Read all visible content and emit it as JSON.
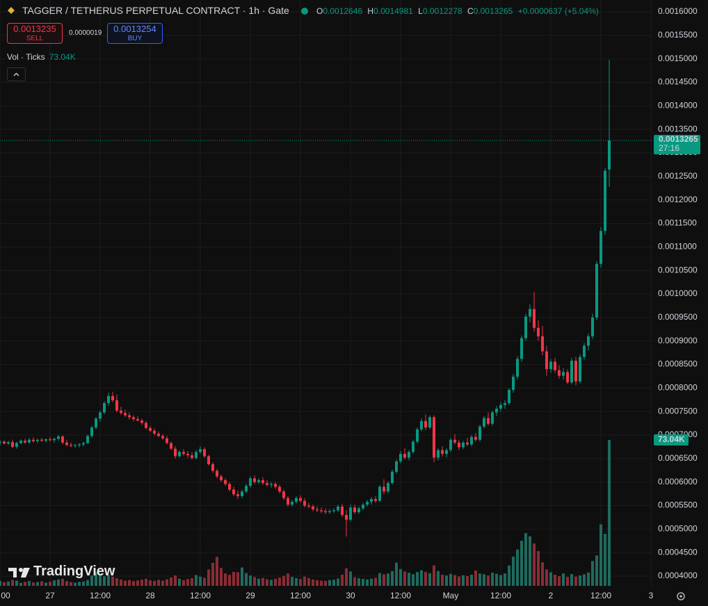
{
  "header": {
    "symbol": "TAGGER / TETHERUS PERPETUAL CONTRACT · 1h · Gate",
    "ohlc_letters": [
      "O",
      "H",
      "L",
      "C"
    ],
    "change": "+0.0000637 (+5.04%)"
  },
  "trade": {
    "sell_price": "0.0013235",
    "sell_label": "SELL",
    "spread": "0.0000019",
    "buy_price": "0.0013254",
    "buy_label": "BUY"
  },
  "volume_legend": "Vol · Ticks",
  "logo": "TradingView",
  "countdown": "27:16",
  "chart_data": {
    "type": "candlestick",
    "up_color": "#089981",
    "down_color": "#f23645",
    "vol_up_color": "#1e6b5f",
    "vol_down_color": "#8b2c35",
    "grid": true,
    "ylim": [
      0.0004,
      0.0016
    ],
    "yticks": [
      {
        "value": 0.0004,
        "label": "0.0004000"
      },
      {
        "value": 0.00045,
        "label": "0.0004500"
      },
      {
        "value": 0.0005,
        "label": "0.0005000"
      },
      {
        "value": 0.00055,
        "label": "0.0005500"
      },
      {
        "value": 0.0006,
        "label": "0.0006000"
      },
      {
        "value": 0.00065,
        "label": "0.0006500"
      },
      {
        "value": 0.0007,
        "label": "0.0007000"
      },
      {
        "value": 0.00075,
        "label": "0.0007500"
      },
      {
        "value": 0.0008,
        "label": "0.0008000"
      },
      {
        "value": 0.00085,
        "label": "0.0008500"
      },
      {
        "value": 0.0009,
        "label": "0.0009000"
      },
      {
        "value": 0.00095,
        "label": "0.0009500"
      },
      {
        "value": 0.001,
        "label": "0.0010000"
      },
      {
        "value": 0.00105,
        "label": "0.0010500"
      },
      {
        "value": 0.0011,
        "label": "0.0011000"
      },
      {
        "value": 0.00115,
        "label": "0.0011500"
      },
      {
        "value": 0.0012,
        "label": "0.0012000"
      },
      {
        "value": 0.00125,
        "label": "0.0012500"
      },
      {
        "value": 0.0013,
        "label": "0.0013000"
      },
      {
        "value": 0.00135,
        "label": "0.0013500"
      },
      {
        "value": 0.0014,
        "label": "0.0014000"
      },
      {
        "value": 0.00145,
        "label": "0.0014500"
      },
      {
        "value": 0.0015,
        "label": "0.0015000"
      },
      {
        "value": 0.00155,
        "label": "0.0015500"
      },
      {
        "value": 0.0016,
        "label": "0.0016000"
      }
    ],
    "xticks": [
      {
        "value": 0,
        "label": "00"
      },
      {
        "value": 12,
        "label": "27"
      },
      {
        "value": 24,
        "label": "12:00"
      },
      {
        "value": 36,
        "label": "28"
      },
      {
        "value": 48,
        "label": "12:00"
      },
      {
        "value": 60,
        "label": "29"
      },
      {
        "value": 72,
        "label": "12:00"
      },
      {
        "value": 84,
        "label": "30"
      },
      {
        "value": 96,
        "label": "12:00"
      },
      {
        "value": 108,
        "label": "May"
      },
      {
        "value": 120,
        "label": "12:00"
      },
      {
        "value": 132,
        "label": "2"
      },
      {
        "value": 144,
        "label": "12:00"
      },
      {
        "value": 156,
        "label": "3"
      }
    ],
    "last_volume_label": "73.04K",
    "candles": [
      [
        0.000684,
        0.00069,
        0.000678,
        0.000686
      ],
      [
        0.000686,
        0.000689,
        0.00068,
        0.000682
      ],
      [
        0.000682,
        0.000688,
        0.000679,
        0.000685
      ],
      [
        0.000685,
        0.00069,
        0.000672,
        0.000675
      ],
      [
        0.000675,
        0.000686,
        0.000671,
        0.000683
      ],
      [
        0.000683,
        0.000691,
        0.00068,
        0.000688
      ],
      [
        0.000688,
        0.000692,
        0.000681,
        0.000684
      ],
      [
        0.000684,
        0.000694,
        0.000682,
        0.00069
      ],
      [
        0.00069,
        0.000695,
        0.000684,
        0.000687
      ],
      [
        0.000687,
        0.000692,
        0.000683,
        0.00069
      ],
      [
        0.00069,
        0.000694,
        0.000685,
        0.000688
      ],
      [
        0.000688,
        0.000693,
        0.000684,
        0.000691
      ],
      [
        0.000691,
        0.000696,
        0.000686,
        0.000689
      ],
      [
        0.000689,
        0.000694,
        0.000684,
        0.000692
      ],
      [
        0.000692,
        0.000701,
        0.000688,
        0.000697
      ],
      [
        0.000697,
        0.0007,
        0.00068,
        0.000684
      ],
      [
        0.000684,
        0.00069,
        0.000676,
        0.000679
      ],
      [
        0.000679,
        0.000684,
        0.000674,
        0.000677
      ],
      [
        0.000677,
        0.000682,
        0.000673,
        0.000678
      ],
      [
        0.000678,
        0.000683,
        0.000674,
        0.00068
      ],
      [
        0.00068,
        0.000686,
        0.000676,
        0.000683
      ],
      [
        0.000683,
        0.000701,
        0.000681,
        0.000698
      ],
      [
        0.000698,
        0.00072,
        0.000694,
        0.000716
      ],
      [
        0.000716,
        0.000738,
        0.000712,
        0.000735
      ],
      [
        0.000735,
        0.000752,
        0.000728,
        0.000748
      ],
      [
        0.000748,
        0.000772,
        0.000744,
        0.000768
      ],
      [
        0.000768,
        0.00079,
        0.000762,
        0.000783
      ],
      [
        0.000783,
        0.000792,
        0.00077,
        0.000774
      ],
      [
        0.000774,
        0.000786,
        0.000748,
        0.000752
      ],
      [
        0.000752,
        0.00076,
        0.000743,
        0.000747
      ],
      [
        0.000747,
        0.000754,
        0.000738,
        0.000742
      ],
      [
        0.000742,
        0.000748,
        0.000733,
        0.000738
      ],
      [
        0.000738,
        0.000742,
        0.000729,
        0.000734
      ],
      [
        0.000734,
        0.00074,
        0.000728,
        0.000731
      ],
      [
        0.000731,
        0.000735,
        0.000722,
        0.000726
      ],
      [
        0.000726,
        0.00073,
        0.000712,
        0.000715
      ],
      [
        0.000715,
        0.00072,
        0.000706,
        0.000709
      ],
      [
        0.000709,
        0.000714,
        0.0007,
        0.000703
      ],
      [
        0.000703,
        0.000708,
        0.000695,
        0.000698
      ],
      [
        0.000698,
        0.000702,
        0.00069,
        0.000693
      ],
      [
        0.000693,
        0.000698,
        0.00068,
        0.000683
      ],
      [
        0.000683,
        0.000686,
        0.000668,
        0.000671
      ],
      [
        0.000671,
        0.000676,
        0.00065,
        0.000655
      ],
      [
        0.000655,
        0.000668,
        0.000652,
        0.000664
      ],
      [
        0.000664,
        0.00067,
        0.000656,
        0.00066
      ],
      [
        0.00066,
        0.000666,
        0.000652,
        0.000657
      ],
      [
        0.000657,
        0.000664,
        0.000648,
        0.000651
      ],
      [
        0.000651,
        0.000668,
        0.000648,
        0.000664
      ],
      [
        0.000664,
        0.000676,
        0.00066,
        0.00067
      ],
      [
        0.00067,
        0.000674,
        0.000652,
        0.000655
      ],
      [
        0.000655,
        0.000658,
        0.000635,
        0.000638
      ],
      [
        0.000638,
        0.000642,
        0.00062,
        0.000624
      ],
      [
        0.000624,
        0.000628,
        0.000608,
        0.000612
      ],
      [
        0.000612,
        0.000616,
        0.0006,
        0.000604
      ],
      [
        0.000604,
        0.000608,
        0.000592,
        0.000596
      ],
      [
        0.000596,
        0.0006,
        0.00058,
        0.000584
      ],
      [
        0.000584,
        0.00059,
        0.00057,
        0.000574
      ],
      [
        0.000574,
        0.000582,
        0.000564,
        0.00057
      ],
      [
        0.00057,
        0.000584,
        0.000566,
        0.00058
      ],
      [
        0.00058,
        0.000596,
        0.000576,
        0.000592
      ],
      [
        0.000592,
        0.000612,
        0.000588,
        0.000608
      ],
      [
        0.000608,
        0.000614,
        0.000596,
        0.0006
      ],
      [
        0.0006,
        0.000608,
        0.000596,
        0.000604
      ],
      [
        0.000604,
        0.00061,
        0.000594,
        0.000598
      ],
      [
        0.000598,
        0.000604,
        0.00059,
        0.000594
      ],
      [
        0.000594,
        0.0006,
        0.000588,
        0.000596
      ],
      [
        0.000596,
        0.0006,
        0.000586,
        0.00059
      ],
      [
        0.00059,
        0.000594,
        0.000576,
        0.00058
      ],
      [
        0.00058,
        0.000584,
        0.000562,
        0.000566
      ],
      [
        0.000566,
        0.00057,
        0.000548,
        0.000552
      ],
      [
        0.000552,
        0.000562,
        0.000548,
        0.000558
      ],
      [
        0.000558,
        0.00057,
        0.000554,
        0.000566
      ],
      [
        0.000566,
        0.000572,
        0.000556,
        0.00056
      ],
      [
        0.00056,
        0.000566,
        0.000546,
        0.00055
      ],
      [
        0.00055,
        0.000556,
        0.000544,
        0.000548
      ],
      [
        0.000548,
        0.000552,
        0.000538,
        0.000542
      ],
      [
        0.000542,
        0.000548,
        0.000536,
        0.00054
      ],
      [
        0.00054,
        0.000546,
        0.000534,
        0.000538
      ],
      [
        0.000538,
        0.000544,
        0.000532,
        0.000536
      ],
      [
        0.000536,
        0.000542,
        0.000532,
        0.000538
      ],
      [
        0.000538,
        0.000544,
        0.000534,
        0.00054
      ],
      [
        0.00054,
        0.000552,
        0.000536,
        0.000548
      ],
      [
        0.000548,
        0.000554,
        0.000526,
        0.00053
      ],
      [
        0.00053,
        0.00054,
        0.000484,
        0.00052
      ],
      [
        0.00052,
        0.000552,
        0.000516,
        0.000546
      ],
      [
        0.000546,
        0.000552,
        0.000532,
        0.000536
      ],
      [
        0.000536,
        0.000548,
        0.000532,
        0.000544
      ],
      [
        0.000544,
        0.000556,
        0.00054,
        0.000552
      ],
      [
        0.000552,
        0.000562,
        0.000548,
        0.000558
      ],
      [
        0.000558,
        0.000568,
        0.000552,
        0.000564
      ],
      [
        0.000564,
        0.00057,
        0.000556,
        0.00056
      ],
      [
        0.00056,
        0.000594,
        0.000558,
        0.00059
      ],
      [
        0.00059,
        0.000606,
        0.000574,
        0.00058
      ],
      [
        0.00058,
        0.000602,
        0.000576,
        0.000598
      ],
      [
        0.000598,
        0.000626,
        0.000594,
        0.000622
      ],
      [
        0.000622,
        0.000648,
        0.000618,
        0.000644
      ],
      [
        0.000644,
        0.000666,
        0.00064,
        0.00066
      ],
      [
        0.00066,
        0.000672,
        0.000648,
        0.000652
      ],
      [
        0.000652,
        0.000668,
        0.000646,
        0.000664
      ],
      [
        0.000664,
        0.00069,
        0.00066,
        0.000686
      ],
      [
        0.000686,
        0.000716,
        0.000682,
        0.000712
      ],
      [
        0.000712,
        0.000736,
        0.000708,
        0.00073
      ],
      [
        0.00073,
        0.000744,
        0.00071,
        0.000716
      ],
      [
        0.000716,
        0.000742,
        0.000712,
        0.000738
      ],
      [
        0.000738,
        0.000742,
        0.000642,
        0.000652
      ],
      [
        0.000652,
        0.000672,
        0.000646,
        0.000668
      ],
      [
        0.000668,
        0.000676,
        0.000654,
        0.00066
      ],
      [
        0.00066,
        0.000672,
        0.000652,
        0.000668
      ],
      [
        0.000668,
        0.000694,
        0.000664,
        0.00069
      ],
      [
        0.00069,
        0.000702,
        0.00068,
        0.000684
      ],
      [
        0.000684,
        0.00069,
        0.000668,
        0.000674
      ],
      [
        0.000674,
        0.000688,
        0.00067,
        0.000684
      ],
      [
        0.000684,
        0.000694,
        0.000676,
        0.00068
      ],
      [
        0.00068,
        0.0007,
        0.000676,
        0.000696
      ],
      [
        0.000696,
        0.000704,
        0.000686,
        0.00069
      ],
      [
        0.00069,
        0.000722,
        0.000686,
        0.000718
      ],
      [
        0.000718,
        0.00074,
        0.000714,
        0.000736
      ],
      [
        0.000736,
        0.000748,
        0.00072,
        0.000724
      ],
      [
        0.000724,
        0.000752,
        0.00072,
        0.000748
      ],
      [
        0.000748,
        0.000762,
        0.00074,
        0.000756
      ],
      [
        0.000756,
        0.00077,
        0.00075,
        0.000764
      ],
      [
        0.000764,
        0.000774,
        0.000756,
        0.000768
      ],
      [
        0.000768,
        0.0008,
        0.000764,
        0.000796
      ],
      [
        0.000796,
        0.00083,
        0.00079,
        0.000824
      ],
      [
        0.000824,
        0.000868,
        0.000818,
        0.000862
      ],
      [
        0.000862,
        0.000912,
        0.000856,
        0.000906
      ],
      [
        0.000906,
        0.000958,
        0.0009,
        0.000952
      ],
      [
        0.000952,
        0.000978,
        0.00094,
        0.000968
      ],
      [
        0.000968,
        0.001004,
        0.00092,
        0.000928
      ],
      [
        0.000928,
        0.000944,
        0.0009,
        0.00091
      ],
      [
        0.00091,
        0.000932,
        0.00087,
        0.000878
      ],
      [
        0.000878,
        0.00089,
        0.000826,
        0.00084
      ],
      [
        0.00084,
        0.000862,
        0.000832,
        0.000856
      ],
      [
        0.000856,
        0.000864,
        0.000832,
        0.000838
      ],
      [
        0.000838,
        0.000848,
        0.00082,
        0.000826
      ],
      [
        0.000826,
        0.000842,
        0.000818,
        0.000834
      ],
      [
        0.000834,
        0.00084,
        0.000808,
        0.000812
      ],
      [
        0.000812,
        0.000864,
        0.000808,
        0.000858
      ],
      [
        0.000858,
        0.000866,
        0.000806,
        0.000814
      ],
      [
        0.000814,
        0.000872,
        0.00081,
        0.000866
      ],
      [
        0.000866,
        0.000896,
        0.00086,
        0.00089
      ],
      [
        0.00089,
        0.000916,
        0.00088,
        0.00091
      ],
      [
        0.00091,
        0.000958,
        0.000904,
        0.00095
      ],
      [
        0.00095,
        0.00107,
        0.000944,
        0.001064
      ],
      [
        0.001064,
        0.001142,
        0.001056,
        0.001134
      ],
      [
        0.001134,
        0.001268,
        0.001126,
        0.001262
      ],
      [
        0.0012646,
        0.0014981,
        0.0012278,
        0.0013265
      ]
    ],
    "volumes": [
      2500,
      1800,
      2200,
      3000,
      2600,
      1500,
      2000,
      2400,
      1700,
      1900,
      2300,
      1600,
      2100,
      2800,
      3200,
      3500,
      2400,
      1900,
      1600,
      2000,
      2200,
      2900,
      5200,
      6800,
      6000,
      4800,
      5500,
      4600,
      3800,
      3200,
      2600,
      2900,
      2400,
      2700,
      3100,
      3600,
      2800,
      2500,
      3000,
      2600,
      3300,
      4200,
      5200,
      3600,
      2900,
      3400,
      3800,
      5400,
      4600,
      4000,
      8200,
      11500,
      14500,
      9000,
      6200,
      5500,
      7000,
      6800,
      9200,
      6400,
      5200,
      4400,
      3600,
      3900,
      3300,
      3000,
      3600,
      4100,
      5000,
      6200,
      4500,
      3800,
      3400,
      4600,
      3900,
      3200,
      2800,
      2600,
      2500,
      2900,
      3100,
      3700,
      5600,
      8800,
      7200,
      4300,
      3800,
      3500,
      3200,
      3600,
      4000,
      6400,
      5800,
      6200,
      7400,
      11600,
      8400,
      7200,
      6600,
      5800,
      6900,
      7800,
      7000,
      6300,
      10200,
      7400,
      5600,
      5200,
      6000,
      5400,
      4700,
      5300,
      4900,
      5600,
      7700,
      6200,
      5800,
      5200,
      6600,
      6000,
      5400,
      6200,
      10200,
      14600,
      18200,
      22600,
      26400,
      24800,
      21200,
      17400,
      11800,
      8200,
      6800,
      5600,
      4800,
      6200,
      4500,
      5900,
      4600,
      5200,
      5800,
      6700,
      12400,
      15200,
      30800,
      26000,
      73040
    ]
  }
}
